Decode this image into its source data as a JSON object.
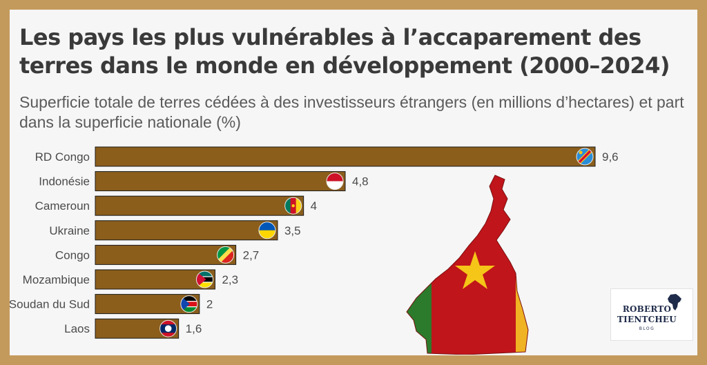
{
  "chart_data": {
    "type": "bar",
    "orientation": "horizontal",
    "title": "Les pays les plus vulnérables à l’accaparement des terres dans le monde en développement (2000–2024)",
    "subtitle": "Superficie totale de terres cédées à des investisseurs étrangers (en millions d’hectares) et part dans la superficie nationale (%)",
    "categories": [
      "RD Congo",
      "Indonésie",
      "Cameroun",
      "Ukraine",
      "Congo",
      "Mozambique",
      "Soudan du Sud",
      "Laos"
    ],
    "values": [
      9.6,
      4.8,
      4,
      3.5,
      2.7,
      2.3,
      2,
      1.6
    ],
    "value_labels": [
      "9,6",
      "4,8",
      "4",
      "3,5",
      "2,7",
      "2,3",
      "2",
      "1,6"
    ],
    "flags": [
      "flag-drc-icon",
      "flag-indonesia-icon",
      "flag-cameroon-icon",
      "flag-ukraine-icon",
      "flag-congo-icon",
      "flag-mozambique-icon",
      "flag-south-sudan-icon",
      "flag-laos-icon"
    ],
    "bar_color": "#8b5e1c",
    "xlim": [
      0,
      9.6
    ],
    "grid": false,
    "legend": "none"
  },
  "colors": {
    "frame": "#c49a5c",
    "background": "#f6f6f6",
    "cameroon_green": "#2c7a2c",
    "cameroon_red": "#c0151b",
    "cameroon_yellow": "#f5c518"
  },
  "decor": {
    "map": "cameroon-flag-map-icon",
    "logo_line1": "ROBERTO",
    "logo_line2": "TIENTCHEU",
    "logo_line3": "BLOG"
  }
}
